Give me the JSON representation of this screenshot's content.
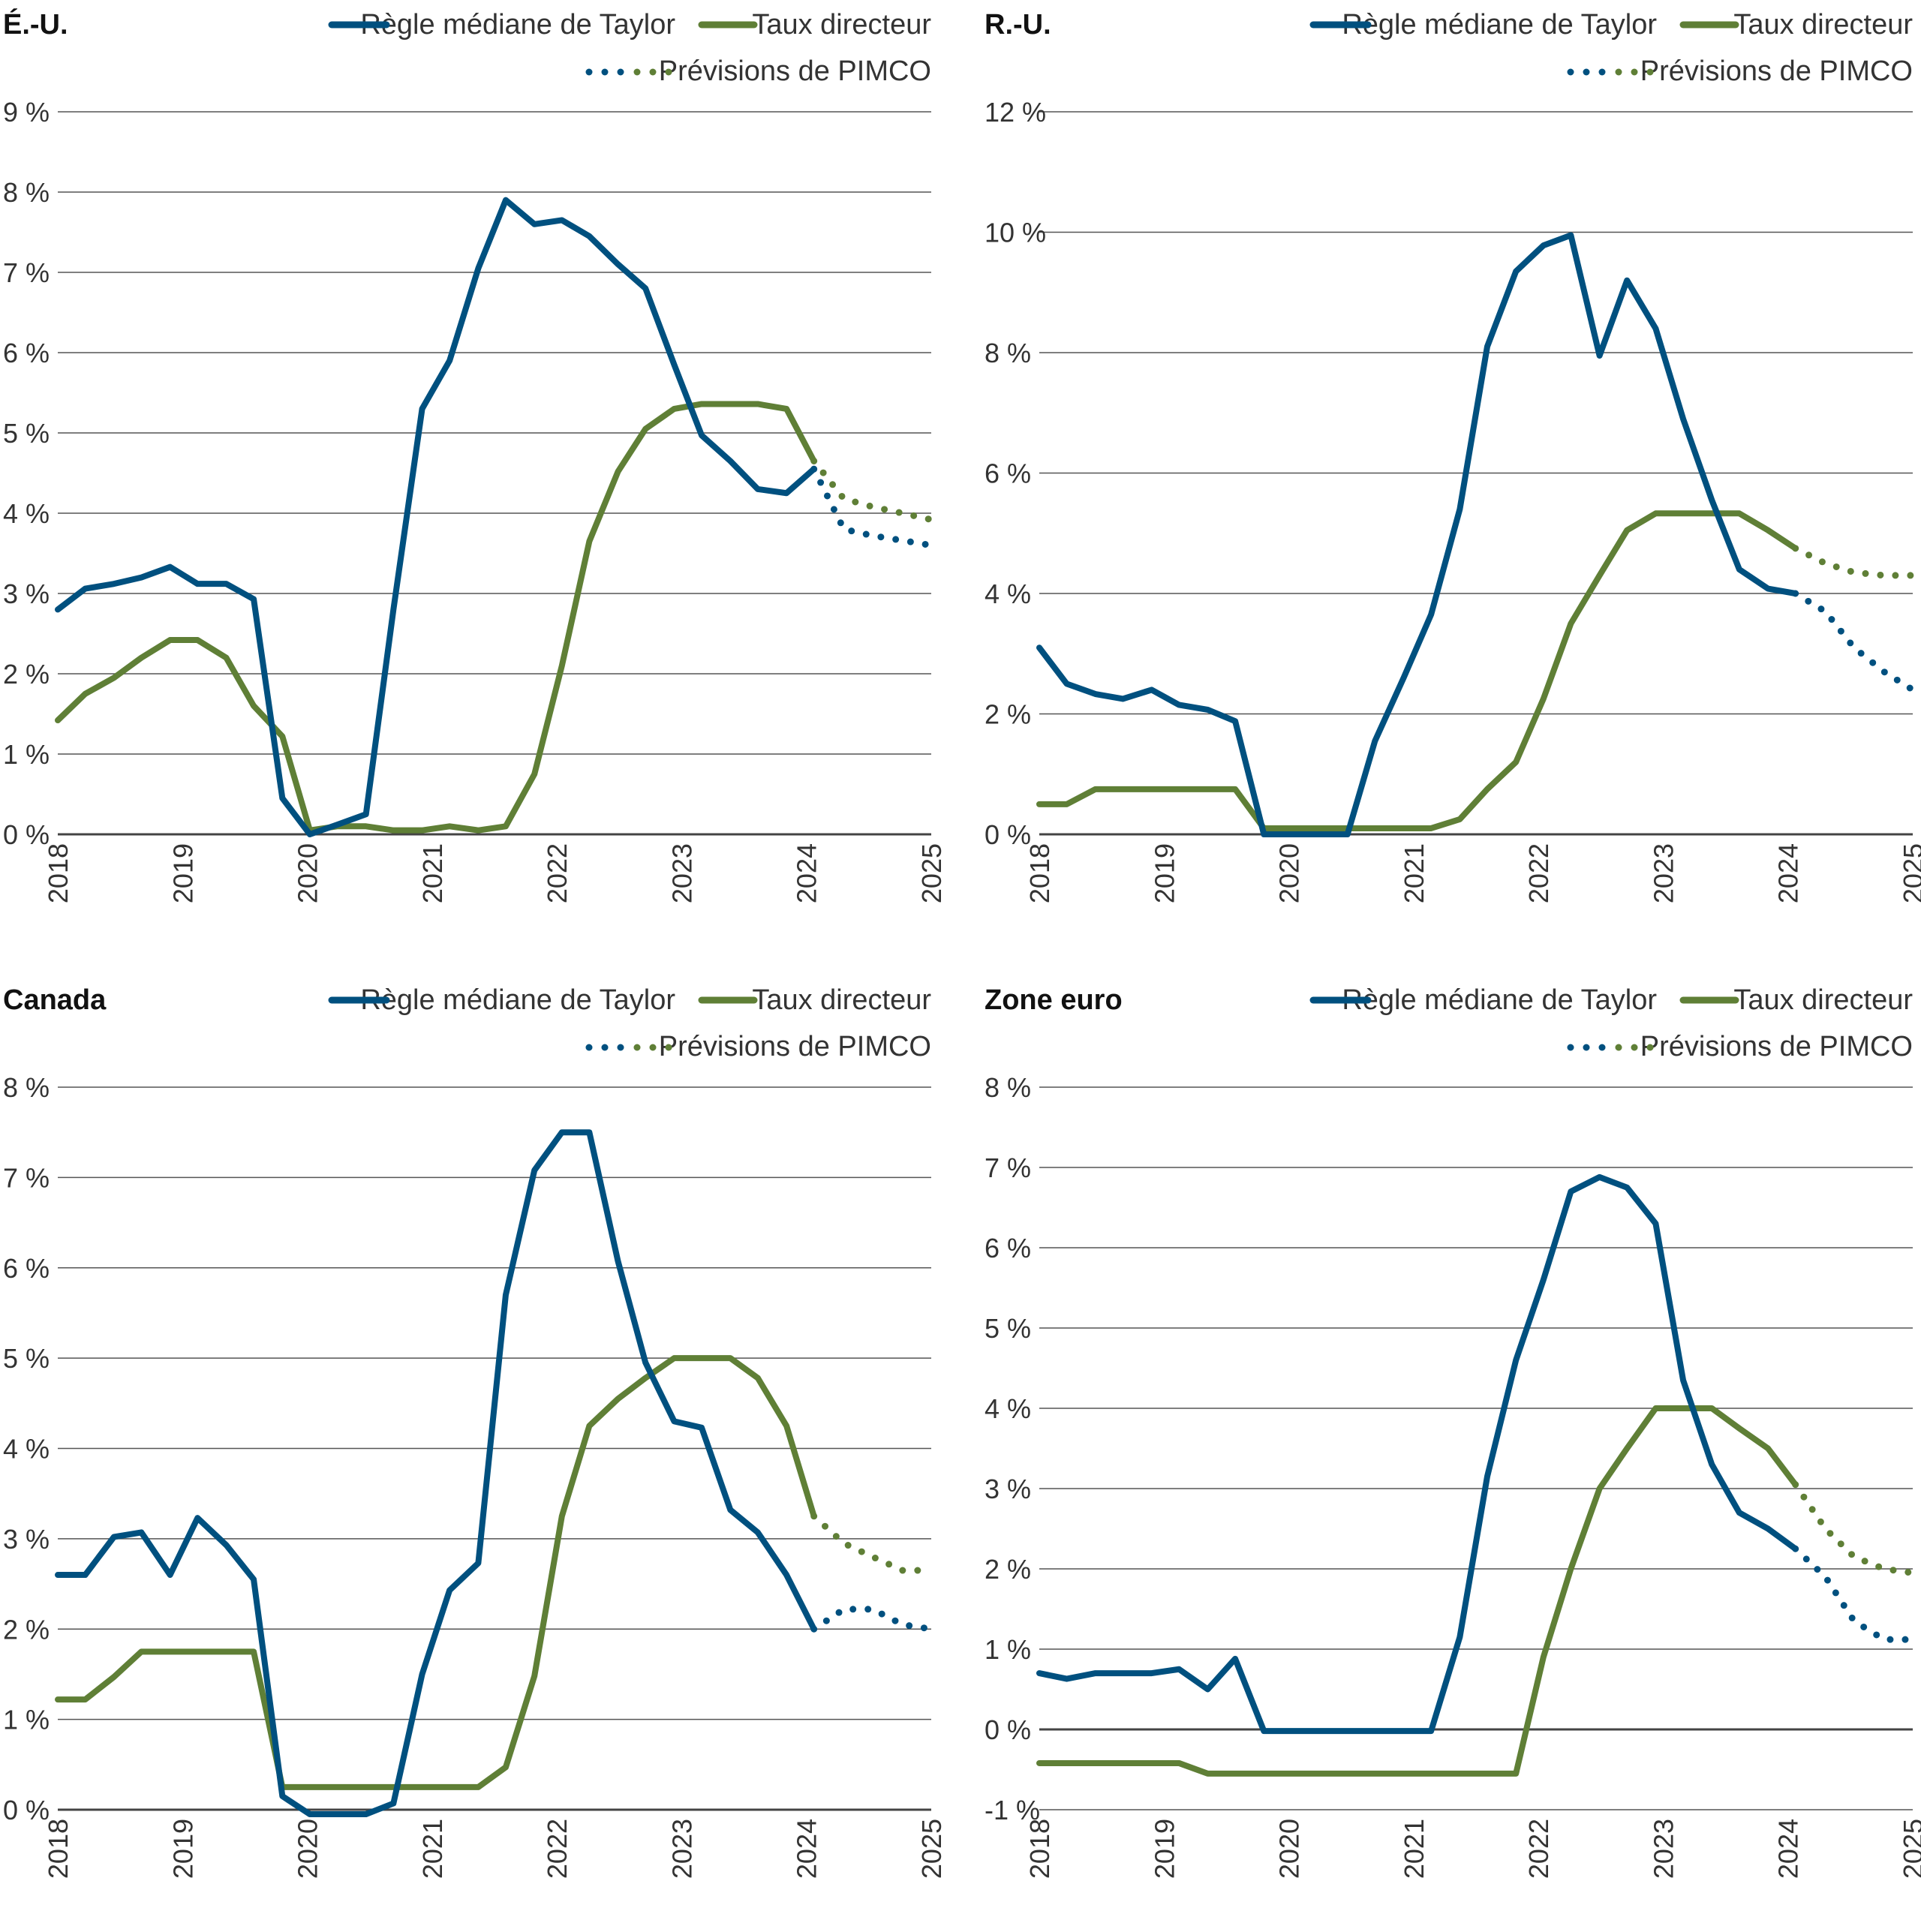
{
  "legend": {
    "taylor": "Règle médiane de Taylor",
    "policy": "Taux directeur",
    "forecast": "Prévisions de PIMCO"
  },
  "colors": {
    "taylor": "#00507f",
    "policy": "#5f7f36",
    "grid": "#555555",
    "text": "#333333"
  },
  "chart_data": [
    {
      "type": "line",
      "title": "É.-U.",
      "ylim": [
        0,
        9
      ],
      "ytick_step": 1,
      "yticks": [
        "0 %",
        "1 %",
        "2 %",
        "3 %",
        "4 %",
        "5 %",
        "6 %",
        "7 %",
        "8 %",
        "9 %"
      ],
      "xlim": [
        2018,
        2025
      ],
      "xticks": [
        "2018",
        "2019",
        "2020",
        "2021",
        "2022",
        "2023",
        "2024",
        "2025"
      ],
      "grid": true,
      "legend_position": "top-right",
      "x": [
        2018.0,
        2018.22,
        2018.45,
        2018.67,
        2018.9,
        2019.12,
        2019.35,
        2019.57,
        2019.8,
        2020.02,
        2020.24,
        2020.47,
        2020.69,
        2020.92,
        2021.14,
        2021.37,
        2021.59,
        2021.82,
        2022.04,
        2022.26,
        2022.49,
        2022.71,
        2022.94,
        2023.16,
        2023.39,
        2023.61,
        2023.84,
        2024.06
      ],
      "series": [
        {
          "name": "Règle médiane de Taylor",
          "key": "taylor",
          "values": [
            2.8,
            3.06,
            3.12,
            3.2,
            3.33,
            3.12,
            3.12,
            2.93,
            0.45,
            0,
            0.12,
            0.25,
            2.8,
            5.3,
            5.9,
            7.05,
            7.9,
            7.6,
            7.65,
            7.45,
            7.1,
            6.8,
            5.85,
            4.97,
            4.65,
            4.3,
            4.25,
            4.55
          ]
        },
        {
          "name": "Taux directeur",
          "key": "policy",
          "values": [
            1.42,
            1.75,
            1.95,
            2.2,
            2.42,
            2.42,
            2.2,
            1.6,
            1.22,
            0.05,
            0.1,
            0.1,
            0.05,
            0.05,
            0.1,
            0.05,
            0.1,
            0.75,
            2.1,
            3.65,
            4.52,
            5.05,
            5.3,
            5.36,
            5.36,
            5.36,
            5.3,
            4.65
          ]
        }
      ],
      "forecast_x": [
        2024.06,
        2024.3,
        2024.53,
        2024.77,
        2025.0
      ],
      "forecast": [
        {
          "key": "taylor",
          "values": [
            4.55,
            3.8,
            3.72,
            3.66,
            3.6
          ]
        },
        {
          "key": "policy",
          "values": [
            4.65,
            4.18,
            4.08,
            4.0,
            3.92
          ]
        }
      ]
    },
    {
      "type": "line",
      "title": "R.-U.",
      "ylim": [
        0,
        12
      ],
      "ytick_step": 2,
      "yticks": [
        "0 %",
        "2 %",
        "4 %",
        "6 %",
        "8 %",
        "10 %",
        "12 %"
      ],
      "xlim": [
        2018,
        2025
      ],
      "xticks": [
        "2018",
        "2019",
        "2020",
        "2021",
        "2022",
        "2023",
        "2024",
        "2025"
      ],
      "grid": true,
      "legend_position": "top-right",
      "x": [
        2018.0,
        2018.22,
        2018.45,
        2018.67,
        2018.9,
        2019.12,
        2019.35,
        2019.57,
        2019.8,
        2020.02,
        2020.24,
        2020.47,
        2020.69,
        2020.92,
        2021.14,
        2021.37,
        2021.59,
        2021.82,
        2022.04,
        2022.26,
        2022.49,
        2022.71,
        2022.94,
        2023.16,
        2023.39,
        2023.61,
        2023.84,
        2024.06
      ],
      "series": [
        {
          "name": "Règle médiane de Taylor",
          "key": "taylor",
          "values": [
            3.1,
            2.5,
            2.33,
            2.25,
            2.4,
            2.15,
            2.07,
            1.88,
            0,
            0,
            0,
            0,
            1.55,
            2.6,
            3.65,
            5.4,
            8.1,
            9.35,
            9.78,
            9.95,
            7.95,
            9.2,
            8.4,
            6.9,
            5.55,
            4.4,
            4.08,
            4.0
          ]
        },
        {
          "name": "Taux directeur",
          "key": "policy",
          "values": [
            0.5,
            0.5,
            0.75,
            0.75,
            0.75,
            0.75,
            0.75,
            0.75,
            0.1,
            0.1,
            0.1,
            0.1,
            0.1,
            0.1,
            0.1,
            0.25,
            0.75,
            1.2,
            2.25,
            3.5,
            4.3,
            5.05,
            5.33,
            5.33,
            5.33,
            5.33,
            5.05,
            4.75
          ]
        }
      ],
      "forecast_x": [
        2024.06,
        2024.3,
        2024.53,
        2024.77,
        2025.0
      ],
      "forecast": [
        {
          "key": "taylor",
          "values": [
            4.0,
            3.7,
            3.1,
            2.7,
            2.4
          ]
        },
        {
          "key": "policy",
          "values": [
            4.75,
            4.5,
            4.35,
            4.3,
            4.3
          ]
        }
      ]
    },
    {
      "type": "line",
      "title": "Canada",
      "ylim": [
        0,
        8
      ],
      "ytick_step": 1,
      "yticks": [
        "0 %",
        "1 %",
        "2 %",
        "3 %",
        "4 %",
        "5 %",
        "6 %",
        "7 %",
        "8 %"
      ],
      "xlim": [
        2018,
        2025
      ],
      "xticks": [
        "2018",
        "2019",
        "2020",
        "2021",
        "2022",
        "2023",
        "2024",
        "2025"
      ],
      "grid": true,
      "legend_position": "top-right",
      "x": [
        2018.0,
        2018.22,
        2018.45,
        2018.67,
        2018.9,
        2019.12,
        2019.35,
        2019.57,
        2019.8,
        2020.02,
        2020.24,
        2020.47,
        2020.69,
        2020.92,
        2021.14,
        2021.37,
        2021.59,
        2021.82,
        2022.04,
        2022.26,
        2022.49,
        2022.71,
        2022.94,
        2023.16,
        2023.39,
        2023.61,
        2023.84,
        2024.06
      ],
      "series": [
        {
          "name": "Règle médiane de Taylor",
          "key": "taylor",
          "values": [
            2.6,
            2.6,
            3.02,
            3.07,
            2.6,
            3.23,
            2.93,
            2.55,
            0.15,
            -0.05,
            -0.05,
            -0.05,
            0.07,
            1.5,
            2.43,
            2.73,
            5.7,
            7.08,
            7.5,
            7.5,
            6.07,
            4.95,
            4.3,
            4.23,
            3.32,
            3.07,
            2.6,
            2.0
          ]
        },
        {
          "name": "Taux directeur",
          "key": "policy",
          "values": [
            1.22,
            1.22,
            1.47,
            1.75,
            1.75,
            1.75,
            1.75,
            1.75,
            0.25,
            0.25,
            0.25,
            0.25,
            0.25,
            0.25,
            0.25,
            0.25,
            0.47,
            1.48,
            3.25,
            4.25,
            4.55,
            4.78,
            5.0,
            5.0,
            5.0,
            4.78,
            4.25,
            3.25
          ]
        }
      ],
      "forecast_x": [
        2024.06,
        2024.3,
        2024.53,
        2024.77,
        2025.0
      ],
      "forecast": [
        {
          "key": "taylor",
          "values": [
            2.0,
            2.22,
            2.22,
            2.05,
            2.0
          ]
        },
        {
          "key": "policy",
          "values": [
            3.25,
            2.95,
            2.8,
            2.65,
            2.65
          ]
        }
      ]
    },
    {
      "type": "line",
      "title": "Zone euro",
      "ylim": [
        -1,
        8
      ],
      "ytick_step": 1,
      "yticks": [
        "-1 %",
        "0 %",
        "1 %",
        "2 %",
        "3 %",
        "4 %",
        "5 %",
        "6 %",
        "7 %",
        "8 %"
      ],
      "xlim": [
        2018,
        2025
      ],
      "xticks": [
        "2018",
        "2019",
        "2020",
        "2021",
        "2022",
        "2023",
        "2024",
        "2025"
      ],
      "grid": true,
      "legend_position": "top-right",
      "x": [
        2018.0,
        2018.22,
        2018.45,
        2018.67,
        2018.9,
        2019.12,
        2019.35,
        2019.57,
        2019.8,
        2020.02,
        2020.24,
        2020.47,
        2020.69,
        2020.92,
        2021.14,
        2021.37,
        2021.59,
        2021.82,
        2022.04,
        2022.26,
        2022.49,
        2022.71,
        2022.94,
        2023.16,
        2023.39,
        2023.61,
        2023.84,
        2024.06
      ],
      "series": [
        {
          "name": "Règle médiane de Taylor",
          "key": "taylor",
          "values": [
            0.7,
            0.63,
            0.7,
            0.7,
            0.7,
            0.75,
            0.5,
            0.88,
            -0.02,
            -0.02,
            -0.02,
            -0.02,
            -0.02,
            -0.02,
            -0.02,
            1.15,
            3.15,
            4.6,
            5.6,
            6.7,
            6.88,
            6.75,
            6.3,
            4.35,
            3.3,
            2.7,
            2.5,
            2.25
          ]
        },
        {
          "name": "Taux directeur",
          "key": "policy",
          "values": [
            -0.42,
            -0.42,
            -0.42,
            -0.42,
            -0.42,
            -0.42,
            -0.55,
            -0.55,
            -0.55,
            -0.55,
            -0.55,
            -0.55,
            -0.55,
            -0.55,
            -0.55,
            -0.55,
            -0.55,
            -0.55,
            0.9,
            2.0,
            3.0,
            3.5,
            4.0,
            4.0,
            4.0,
            3.75,
            3.5,
            3.05
          ]
        }
      ],
      "forecast_x": [
        2024.06,
        2024.3,
        2024.53,
        2024.77,
        2025.0
      ],
      "forecast": [
        {
          "key": "taylor",
          "values": [
            2.25,
            1.9,
            1.35,
            1.12,
            1.12
          ]
        },
        {
          "key": "policy",
          "values": [
            3.05,
            2.5,
            2.15,
            2.0,
            1.95
          ]
        }
      ]
    }
  ]
}
